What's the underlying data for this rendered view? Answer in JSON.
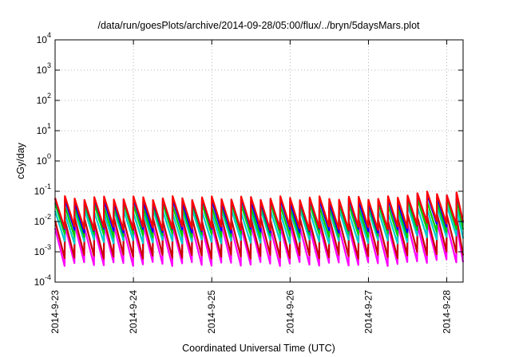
{
  "chart_data": {
    "type": "line",
    "title": "/data/run/goesPlots/archive/2014-09-28/05:00/flux/../bryn/5daysMars.plot",
    "xlabel": "Coordinated Universal Time (UTC)",
    "ylabel": "cGy/day",
    "yscale": "log",
    "ylim": [
      0.0001,
      10000
    ],
    "xlim": [
      "2014-09-23 00:00",
      "2014-09-28 05:00"
    ],
    "grid": true,
    "legend": "none",
    "y_ticks": [
      {
        "base": "10",
        "exp": "-4"
      },
      {
        "base": "10",
        "exp": "-3"
      },
      {
        "base": "10",
        "exp": "-2"
      },
      {
        "base": "10",
        "exp": "-1"
      },
      {
        "base": "10",
        "exp": "0"
      },
      {
        "base": "10",
        "exp": "1"
      },
      {
        "base": "10",
        "exp": "2"
      },
      {
        "base": "10",
        "exp": "3"
      },
      {
        "base": "10",
        "exp": "4"
      }
    ],
    "x_ticks": [
      "2014-9-23",
      "2014-9-24",
      "2014-9-25",
      "2014-9-26",
      "2014-9-27",
      "2014-9-28"
    ],
    "cycle_hours": 3,
    "series": [
      {
        "color": "#ff0000",
        "peak": 0.06,
        "trough": 0.006,
        "late_peak": 0.085,
        "late_trough": 0.009
      },
      {
        "color": "#0000ff",
        "peak": 0.05,
        "trough": 0.005,
        "late_peak": 0.075,
        "late_trough": 0.008
      },
      {
        "color": "#00cc00",
        "peak": 0.035,
        "trough": 0.0035,
        "late_peak": 0.05,
        "late_trough": 0.005
      },
      {
        "color": "#00cccc",
        "peak": 0.022,
        "trough": 0.0022,
        "late_peak": 0.03,
        "late_trough": 0.003
      },
      {
        "color": "#cc0000",
        "peak": 0.012,
        "trough": 0.0007,
        "late_peak": 0.016,
        "late_trough": 0.0009
      },
      {
        "color": "#ff00ff",
        "peak": 0.007,
        "trough": 0.0004,
        "late_peak": 0.009,
        "late_trough": 0.0005
      }
    ]
  }
}
